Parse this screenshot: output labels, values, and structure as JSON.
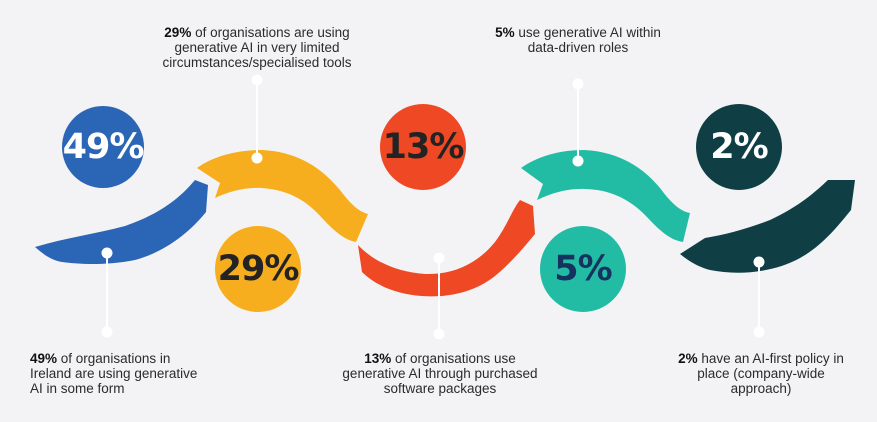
{
  "colors": {
    "blue": "#2b65b5",
    "yellow": "#f7ae1e",
    "red": "#ef4824",
    "teal": "#22bca5",
    "dark_teal": "#0f3f45",
    "circle_text_dark": "#232323",
    "circle_text_navy": "#16335f"
  },
  "steps": [
    {
      "value": "49%",
      "label_bold": "49%",
      "label_line1": " of organisations in",
      "label_line2": "Ireland are using generative",
      "label_line3": "AI in some form"
    },
    {
      "value": "29%",
      "label_bold": "29%",
      "label_line1": " of organisations are using",
      "label_line2": "generative AI in very limited",
      "label_line3": "circumstances/specialised tools"
    },
    {
      "value": "13%",
      "label_bold": "13%",
      "label_line1": " of organisations use",
      "label_line2": "generative AI through purchased",
      "label_line3": "software packages"
    },
    {
      "value": "5%",
      "label_bold": "5%",
      "label_line1": " use generative AI within",
      "label_line2": "data-driven roles"
    },
    {
      "value": "2%",
      "label_bold": "2%",
      "label_line1": " have an AI-first policy in",
      "label_line2": "place (company-wide",
      "label_line3": "approach)"
    }
  ]
}
